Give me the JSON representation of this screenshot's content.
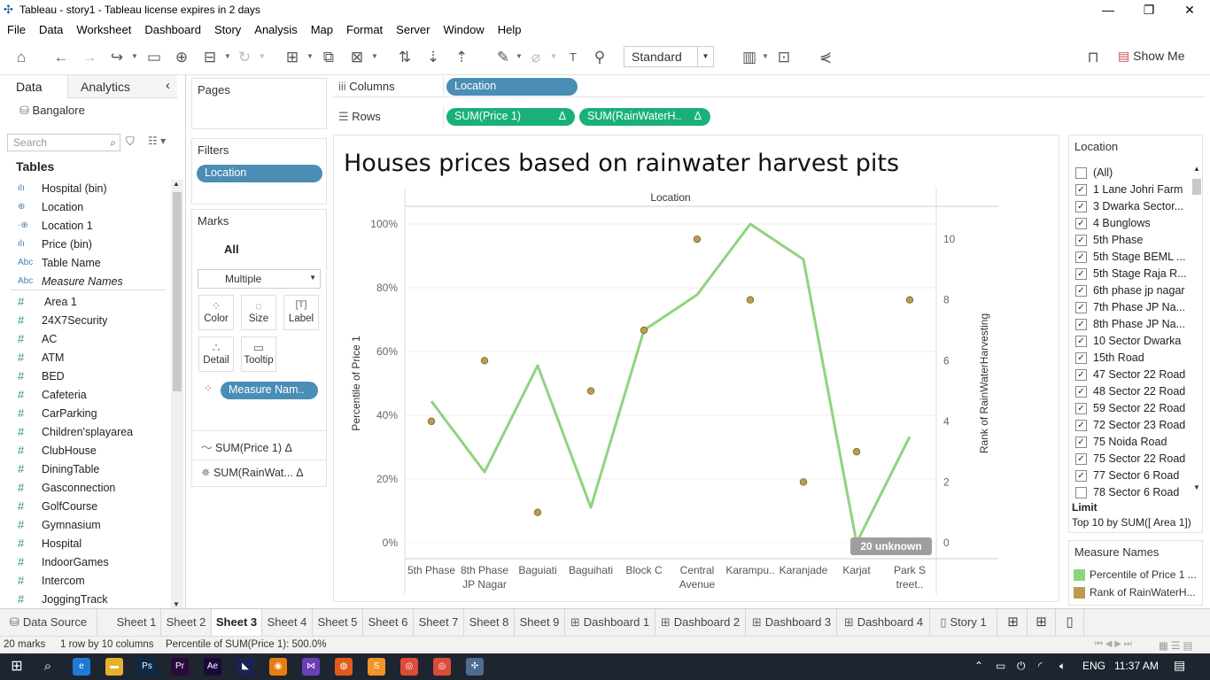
{
  "window": {
    "title": "Tableau - story1 - Tableau license expires in 2 days",
    "minimize": "—",
    "restore": "❐",
    "close": "✕"
  },
  "menu": [
    "File",
    "Data",
    "Worksheet",
    "Dashboard",
    "Story",
    "Analysis",
    "Map",
    "Format",
    "Server",
    "Window",
    "Help"
  ],
  "toolbar": {
    "fit_select": "Standard",
    "show_me": "Show Me"
  },
  "data_pane": {
    "tab_data": "Data",
    "tab_analytics": "Analytics",
    "collapse": "‹",
    "data_source": "Bangalore",
    "search_placeholder": "Search",
    "tables_heading": "Tables",
    "dimensions": [
      {
        "icon": "ılı",
        "name": "Hospital (bin)"
      },
      {
        "icon": "⊕",
        "name": "Location"
      },
      {
        "icon": "·⊕",
        "name": "Location 1"
      },
      {
        "icon": "ılı",
        "name": "Price (bin)"
      },
      {
        "icon": "Abc",
        "name": "Table Name"
      },
      {
        "icon": "Abc",
        "name": "Measure Names"
      }
    ],
    "measures": [
      "Area 1",
      "24X7Security",
      "AC",
      "ATM",
      "BED",
      "Cafeteria",
      "CarParking",
      "Children'splayarea",
      "ClubHouse",
      "DiningTable",
      "Gasconnection",
      "GolfCourse",
      "Gymnasium",
      "Hospital",
      "IndoorGames",
      "Intercom",
      "JoggingTrack"
    ]
  },
  "shelves": {
    "pages": "Pages",
    "filters": "Filters",
    "filter_pill": "Location",
    "marks": "Marks",
    "marks_all": "All",
    "mark_type": "Multiple",
    "mark_buttons": [
      "Color",
      "Size",
      "Label",
      "Detail",
      "Tooltip"
    ],
    "color_pill": "Measure Nam..",
    "marks_sections": [
      "SUM(Price 1)",
      "SUM(RainWat..."
    ],
    "delta": "Δ",
    "columns_label": "Columns",
    "columns_pill": "Location",
    "rows_label": "Rows",
    "rows_pills": [
      "SUM(Price 1)",
      "SUM(RainWaterH.."
    ]
  },
  "view": {
    "title": "Houses prices based on rainwater harvest pits",
    "unknown_badge": "20 unknown"
  },
  "chart_data": {
    "type": "line",
    "title": "Houses prices based on rainwater harvest pits",
    "x_header": "Location",
    "categories": [
      "5th Phase",
      "8th Phase JP Nagar",
      "Baguiati",
      "Baguihati",
      "Block C",
      "Central Avenue",
      "Karampu..",
      "Karanjade",
      "Karjat",
      "Park S treet.."
    ],
    "category_lines": [
      [
        "5th Phase"
      ],
      [
        "8th Phase",
        "JP Nagar"
      ],
      [
        "Baguiati"
      ],
      [
        "Baguihati"
      ],
      [
        "Block C"
      ],
      [
        "Central",
        "Avenue"
      ],
      [
        "Karampu.."
      ],
      [
        "Karanjade"
      ],
      [
        "Karjat"
      ],
      [
        "Park S",
        "treet.."
      ]
    ],
    "ylabel": "Percentile of Price 1",
    "ylabel2": "Rank of RainWaterHarvesting",
    "ylim": [
      0,
      100
    ],
    "yticks": [
      "0%",
      "20%",
      "40%",
      "60%",
      "80%",
      "100%"
    ],
    "y2lim": [
      0,
      10.5
    ],
    "y2ticks": [
      "0",
      "2",
      "4",
      "6",
      "8",
      "10"
    ],
    "series": [
      {
        "name": "Percentile of Price 1",
        "kind": "line",
        "axis": "left",
        "color": "#8ed47e",
        "values": [
          44.4,
          22.2,
          55.6,
          11.1,
          66.7,
          77.8,
          100,
          88.9,
          0,
          33.3
        ]
      },
      {
        "name": "Rank of RainWaterHarvesting",
        "kind": "circle",
        "axis": "right",
        "color": "#b99c4e",
        "values": [
          4,
          6,
          1,
          5,
          7,
          10,
          8,
          2,
          3,
          8
        ]
      }
    ]
  },
  "location_legend": {
    "title": "Location",
    "items": [
      {
        "label": "(All)",
        "checked": false
      },
      {
        "label": "1 Lane Johri Farm",
        "checked": true
      },
      {
        "label": "3 Dwarka Sector...",
        "checked": true
      },
      {
        "label": "4 Bunglows",
        "checked": true
      },
      {
        "label": "5th Phase",
        "checked": true
      },
      {
        "label": "5th Stage BEML ...",
        "checked": true
      },
      {
        "label": "5th Stage Raja R...",
        "checked": true
      },
      {
        "label": "6th phase jp nagar",
        "checked": true
      },
      {
        "label": "7th Phase JP Na...",
        "checked": true
      },
      {
        "label": "8th Phase JP Na...",
        "checked": true
      },
      {
        "label": "10 Sector Dwarka",
        "checked": true
      },
      {
        "label": "15th Road",
        "checked": true
      },
      {
        "label": "47 Sector 22 Road",
        "checked": true
      },
      {
        "label": "48 Sector 22 Road",
        "checked": true
      },
      {
        "label": "59 Sector 22 Road",
        "checked": true
      },
      {
        "label": "72 Sector 23 Road",
        "checked": true
      },
      {
        "label": "75 Noida Road",
        "checked": true
      },
      {
        "label": "75 Sector 22 Road",
        "checked": true
      },
      {
        "label": "77 Sector 6 Road",
        "checked": true
      },
      {
        "label": "78 Sector 6 Road",
        "checked": false
      }
    ],
    "limit_label": "Limit",
    "limit_value": "Top 10 by SUM([ Area 1])"
  },
  "measure_names_legend": {
    "title": "Measure Names",
    "items": [
      {
        "label": "Percentile of Price 1 ...",
        "color": "#8ed47e"
      },
      {
        "label": "Rank of RainWaterH...",
        "color": "#b99c4e"
      }
    ]
  },
  "tabs": [
    {
      "label": "Data Source",
      "icon": "⛁"
    },
    {
      "label": "Sheet 1"
    },
    {
      "label": "Sheet 2"
    },
    {
      "label": "Sheet 3",
      "active": true
    },
    {
      "label": "Sheet 4"
    },
    {
      "label": "Sheet 5"
    },
    {
      "label": "Sheet 6"
    },
    {
      "label": "Sheet 7"
    },
    {
      "label": "Sheet 8"
    },
    {
      "label": "Sheet 9"
    },
    {
      "label": "Dashboard 1",
      "icon": "⊞"
    },
    {
      "label": "Dashboard 2",
      "icon": "⊞"
    },
    {
      "label": "Dashboard 3",
      "icon": "⊞"
    },
    {
      "label": "Dashboard 4",
      "icon": "⊞"
    },
    {
      "label": "Story 1",
      "icon": "▯"
    }
  ],
  "status": {
    "marks": "20 marks",
    "dims": "1 row by 10 columns",
    "sum": "Percentile of SUM(Price 1): 500.0%"
  },
  "taskbar": {
    "time": "11:37 AM",
    "lang": "ENG",
    "apps": [
      {
        "name": "edge",
        "color": "#1f7ad6",
        "glyph": "e"
      },
      {
        "name": "explorer",
        "color": "#e6b12c",
        "glyph": "▬"
      },
      {
        "name": "photoshop",
        "color": "#0b2a4a",
        "glyph": "Ps"
      },
      {
        "name": "premiere",
        "color": "#2a0a3a",
        "glyph": "Pr"
      },
      {
        "name": "after-effects",
        "color": "#1a0a3a",
        "glyph": "Ae"
      },
      {
        "name": "media-encoder",
        "color": "#1b2356",
        "glyph": "◣"
      },
      {
        "name": "blender",
        "color": "#e87d0d",
        "glyph": "◉"
      },
      {
        "name": "visual-studio",
        "color": "#6a3fb5",
        "glyph": "⋈"
      },
      {
        "name": "firefox",
        "color": "#e25b1a",
        "glyph": "◍"
      },
      {
        "name": "sublime",
        "color": "#f2932b",
        "glyph": "S"
      },
      {
        "name": "chrome",
        "color": "#dd4b39",
        "glyph": "◎"
      },
      {
        "name": "chrome-2",
        "color": "#dd4b39",
        "glyph": "◎"
      },
      {
        "name": "tableau",
        "color": "#4d6c8f",
        "glyph": "✣"
      }
    ]
  }
}
